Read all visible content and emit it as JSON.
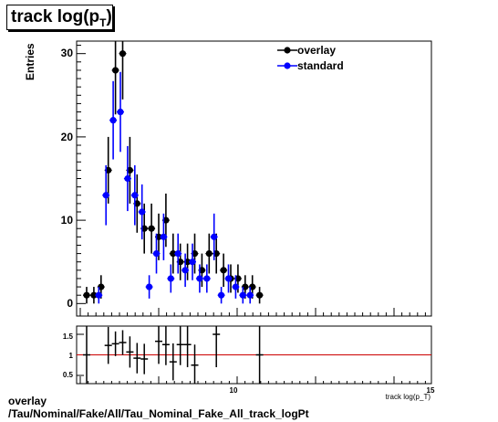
{
  "title": {
    "main": "track log(p",
    "sub": "T",
    "close": ")"
  },
  "footer": {
    "line1": "overlay",
    "line2": "/Tau/Nominal/Fake/All/Tau_Nominal_Fake_All_track_logPt"
  },
  "colors": {
    "overlay": "#000000",
    "standard": "#0000ff",
    "ratio_line": "#cc0000"
  },
  "chart_data": [
    {
      "type": "scatter",
      "ylabel": "Entries",
      "ylim": [
        -1.5,
        31.5
      ],
      "yticks": [
        "0",
        "10",
        "20",
        "30"
      ],
      "legend_position": "top-right",
      "series": [
        {
          "name": "overlay",
          "color": "#000000",
          "x": [
            1,
            2,
            3,
            4,
            5,
            6,
            7,
            8,
            9,
            10,
            11,
            12,
            13,
            14,
            15,
            16,
            17,
            18,
            19,
            20,
            21,
            22,
            23,
            24
          ],
          "values": [
            1,
            1,
            2,
            16,
            28,
            30,
            16,
            12,
            9,
            9,
            8,
            10,
            6,
            5,
            5,
            6,
            4,
            6,
            6,
            4,
            3,
            3,
            2,
            2
          ],
          "errors": [
            1,
            1,
            1.4,
            4,
            5.3,
            5.5,
            4,
            3.5,
            3,
            3,
            2.8,
            3.2,
            2.4,
            2.2,
            2.2,
            2.4,
            2,
            2.4,
            2.4,
            2,
            1.7,
            1.7,
            1.4,
            1.4
          ]
        },
        {
          "name": "standard",
          "color": "#0000ff",
          "x": [
            3,
            4,
            5,
            6,
            7,
            8,
            9,
            10,
            11,
            12,
            13,
            14,
            15,
            16,
            17,
            18,
            19,
            20,
            21,
            22,
            23,
            24
          ],
          "values": [
            1,
            13,
            22,
            23,
            15,
            13,
            11,
            2,
            6,
            8,
            3,
            6,
            4,
            5,
            3,
            3,
            8,
            1,
            3,
            2,
            1,
            1
          ],
          "errors": [
            1,
            3.6,
            4.7,
            4.8,
            3.9,
            3.6,
            3.3,
            1.4,
            2.4,
            2.8,
            1.7,
            2.4,
            2,
            2.2,
            1.7,
            1.7,
            2.8,
            1,
            1.7,
            1.4,
            1,
            1
          ]
        },
        {
          "name": "overlay",
          "color": "#000000",
          "x": [
            25
          ],
          "values": [
            1
          ],
          "errors": [
            1
          ]
        }
      ]
    },
    {
      "type": "scatter",
      "xlabel": "track log(p_T)",
      "ylim": [
        0.3,
        1.7
      ],
      "yticks": [
        "0.5",
        "1",
        "1.5"
      ],
      "xticks": [
        "10",
        "15"
      ],
      "reference_line": 1,
      "series": [
        {
          "name": "ratio",
          "points": [
            {
              "x": 1,
              "y": 1.0,
              "err": 1.4
            },
            {
              "x": 4,
              "y": 1.23,
              "err": 0.45
            },
            {
              "x": 5,
              "y": 1.27,
              "err": 0.3
            },
            {
              "x": 6,
              "y": 1.3,
              "err": 0.3
            },
            {
              "x": 7,
              "y": 1.07,
              "err": 0.38
            },
            {
              "x": 8,
              "y": 0.92,
              "err": 0.37
            },
            {
              "x": 9,
              "y": 0.9,
              "err": 0.37
            },
            {
              "x": 11,
              "y": 1.33,
              "err": 0.55
            },
            {
              "x": 12,
              "y": 1.25,
              "err": 0.5
            },
            {
              "x": 13,
              "y": 0.83,
              "err": 0.45
            },
            {
              "x": 14,
              "y": 1.25,
              "err": 0.5
            },
            {
              "x": 15,
              "y": 1.25,
              "err": 0.55
            },
            {
              "x": 16,
              "y": 0.75,
              "err": 0.5
            },
            {
              "x": 19,
              "y": 1.5,
              "err": 0.8
            },
            {
              "x": 25,
              "y": 1.0,
              "err": 1.4
            }
          ]
        }
      ]
    }
  ]
}
